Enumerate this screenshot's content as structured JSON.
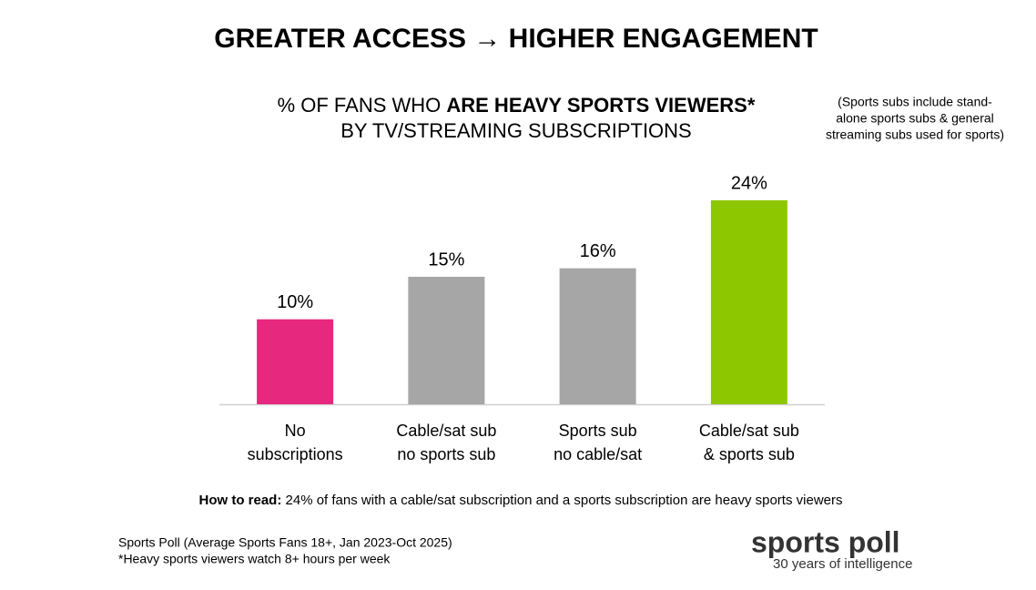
{
  "chart_data": {
    "type": "bar",
    "title": "GREATER ACCESS → HIGHER ENGAGEMENT",
    "subtitle": {
      "plain": "% OF FANS WHO ",
      "bold": "ARE HEAVY SPORTS VIEWERS*",
      "line2": "BY TV/STREAMING SUBSCRIPTIONS"
    },
    "note": [
      "(Sports subs include stand-",
      "alone sports subs & general",
      "streaming subs used for sports)"
    ],
    "categories": [
      [
        "No",
        "subscriptions"
      ],
      [
        "Cable/sat sub",
        "no sports sub"
      ],
      [
        "Sports sub",
        "no cable/sat"
      ],
      [
        "Cable/sat sub",
        "& sports sub"
      ]
    ],
    "values": [
      10,
      15,
      16,
      24
    ],
    "value_labels": [
      "10%",
      "15%",
      "16%",
      "24%"
    ],
    "colors": [
      "#e6287f",
      "#a6a6a6",
      "#a6a6a6",
      "#8dc700"
    ],
    "how_to_read": {
      "label": "How to read:",
      "text": " 24% of fans with a cable/sat subscription and a sports subscription are heavy sports viewers"
    },
    "source": [
      "Sports Poll (Average Sports Fans 18+, Jan 2023-Oct 2025)",
      "*Heavy sports viewers watch 8+ hours per week"
    ],
    "logo": {
      "name": "sports poll",
      "tagline": "30 years of intelligence"
    }
  }
}
